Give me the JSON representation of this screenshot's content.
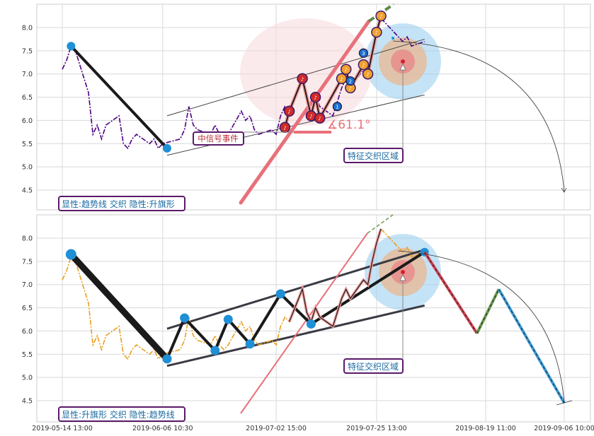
{
  "chart_data": [
    {
      "type": "line",
      "panel": "top",
      "ylim": [
        4.2,
        8.5
      ],
      "yticks": [
        4.5,
        5.0,
        5.5,
        6.0,
        6.5,
        7.0,
        7.5,
        8.0
      ],
      "grid": true,
      "box_label": "显性:趋势线 交织 隐性:升旗形",
      "colors": {
        "price": "#4b0082",
        "trend": "#1a1a1a",
        "pivot": "#1f8fd6",
        "angle": "#e8707a",
        "forecast": "#5c8a4a"
      },
      "price_series": [
        [
          "2019-05-14",
          7.1
        ],
        [
          "2019-05-15",
          7.3
        ],
        [
          "2019-05-16",
          7.6
        ],
        [
          "2019-05-17",
          7.5
        ],
        [
          "2019-05-20",
          6.6
        ],
        [
          "2019-05-21",
          5.7
        ],
        [
          "2019-05-22",
          5.9
        ],
        [
          "2019-05-23",
          5.6
        ],
        [
          "2019-05-24",
          5.9
        ],
        [
          "2019-05-27",
          6.1
        ],
        [
          "2019-05-28",
          5.5
        ],
        [
          "2019-05-29",
          5.4
        ],
        [
          "2019-05-30",
          5.6
        ],
        [
          "2019-05-31",
          5.7
        ],
        [
          "2019-06-03",
          5.5
        ],
        [
          "2019-06-04",
          5.6
        ],
        [
          "2019-06-05",
          5.4
        ],
        [
          "2019-06-06",
          5.5
        ],
        [
          "2019-06-10",
          5.6
        ],
        [
          "2019-06-11",
          5.8
        ],
        [
          "2019-06-12",
          6.3
        ],
        [
          "2019-06-13",
          5.9
        ],
        [
          "2019-06-14",
          5.8
        ],
        [
          "2019-06-17",
          5.7
        ],
        [
          "2019-06-18",
          5.9
        ],
        [
          "2019-06-19",
          5.7
        ],
        [
          "2019-06-20",
          5.6
        ],
        [
          "2019-06-21",
          5.7
        ],
        [
          "2019-06-24",
          6.2
        ],
        [
          "2019-06-25",
          6.0
        ],
        [
          "2019-06-26",
          6.1
        ],
        [
          "2019-06-27",
          5.8
        ],
        [
          "2019-06-28",
          5.7
        ],
        [
          "2019-07-01",
          5.8
        ],
        [
          "2019-07-02",
          5.7
        ],
        [
          "2019-07-03",
          6.1
        ],
        [
          "2019-07-04",
          6.3
        ],
        [
          "2019-07-05",
          6.2
        ],
        [
          "2019-07-08",
          6.9
        ],
        [
          "2019-07-09",
          6.4
        ],
        [
          "2019-07-10",
          6.2
        ],
        [
          "2019-07-11",
          6.5
        ],
        [
          "2019-07-12",
          6.3
        ],
        [
          "2019-07-15",
          6.1
        ],
        [
          "2019-07-16",
          6.4
        ],
        [
          "2019-07-17",
          6.7
        ],
        [
          "2019-07-18",
          6.9
        ],
        [
          "2019-07-19",
          6.7
        ],
        [
          "2019-07-22",
          7.1
        ],
        [
          "2019-07-23",
          7.0
        ],
        [
          "2019-07-24",
          7.5
        ],
        [
          "2019-07-25",
          7.9
        ],
        [
          "2019-07-26",
          8.2
        ],
        [
          "2019-07-29",
          7.9
        ],
        [
          "2019-07-30",
          7.8
        ],
        [
          "2019-07-31",
          7.7
        ],
        [
          "2019-08-01",
          7.8
        ],
        [
          "2019-08-02",
          7.6
        ],
        [
          "2019-08-05",
          7.7
        ]
      ],
      "trend_line": [
        [
          "2019-05-16",
          7.6
        ],
        [
          "2019-06-07",
          5.4
        ]
      ],
      "channel_upper": [
        [
          "2019-06-07",
          6.1
        ],
        [
          "2019-08-05",
          7.75
        ]
      ],
      "channel_lower": [
        [
          "2019-06-07",
          5.25
        ],
        [
          "2019-08-05",
          6.55
        ]
      ],
      "pivot_points": [
        [
          "2019-05-16",
          7.6
        ],
        [
          "2019-06-07",
          5.4
        ]
      ],
      "event_label": "中信号事件",
      "angle_label": "∡61.1°",
      "zone_label": "特征交织区域",
      "signal_markers": [
        [
          "2019-07-04",
          5.85
        ],
        [
          "2019-07-05",
          6.2
        ],
        [
          "2019-07-08",
          6.9
        ],
        [
          "2019-07-10",
          6.1
        ],
        [
          "2019-07-11",
          6.5
        ],
        [
          "2019-07-12",
          6.05
        ],
        [
          "2019-07-17",
          6.9
        ],
        [
          "2019-07-18",
          7.1
        ],
        [
          "2019-07-19",
          6.7
        ],
        [
          "2019-07-22",
          7.2
        ],
        [
          "2019-07-23",
          7.0
        ],
        [
          "2019-07-25",
          7.9
        ],
        [
          "2019-07-26",
          8.25
        ]
      ],
      "blue_markers": [
        [
          "2019-07-16",
          6.3,
          "1"
        ],
        [
          "2019-07-19",
          6.85,
          "2"
        ],
        [
          "2019-07-22",
          7.45,
          "3"
        ]
      ]
    },
    {
      "type": "line",
      "panel": "bottom",
      "ylim": [
        4.2,
        8.5
      ],
      "yticks": [
        4.5,
        5.0,
        5.5,
        6.0,
        6.5,
        7.0,
        7.5,
        8.0
      ],
      "grid": true,
      "box_label": "显性:升旗形 交织 隐性:趋势线",
      "colors": {
        "price": "#e8a020",
        "trend": "#1a1a1a",
        "pivot": "#1f8fd6",
        "channel": "#3a3a44",
        "forecast_red": "#d04050",
        "forecast_green": "#6a9a50",
        "forecast_blue": "#3a9ad8"
      },
      "price_series": [
        [
          "2019-05-14",
          7.1
        ],
        [
          "2019-05-15",
          7.3
        ],
        [
          "2019-05-16",
          7.6
        ],
        [
          "2019-05-17",
          7.5
        ],
        [
          "2019-05-20",
          6.6
        ],
        [
          "2019-05-21",
          5.7
        ],
        [
          "2019-05-22",
          5.9
        ],
        [
          "2019-05-23",
          5.6
        ],
        [
          "2019-05-24",
          5.9
        ],
        [
          "2019-05-27",
          6.1
        ],
        [
          "2019-05-28",
          5.5
        ],
        [
          "2019-05-29",
          5.4
        ],
        [
          "2019-05-30",
          5.6
        ],
        [
          "2019-05-31",
          5.7
        ],
        [
          "2019-06-03",
          5.5
        ],
        [
          "2019-06-04",
          5.6
        ],
        [
          "2019-06-05",
          5.4
        ],
        [
          "2019-06-06",
          5.5
        ],
        [
          "2019-06-10",
          5.6
        ],
        [
          "2019-06-11",
          5.8
        ],
        [
          "2019-06-12",
          6.3
        ],
        [
          "2019-06-13",
          5.9
        ],
        [
          "2019-06-14",
          5.8
        ],
        [
          "2019-06-17",
          5.7
        ],
        [
          "2019-06-18",
          5.9
        ],
        [
          "2019-06-19",
          5.7
        ],
        [
          "2019-06-20",
          5.6
        ],
        [
          "2019-06-21",
          5.7
        ],
        [
          "2019-06-24",
          6.2
        ],
        [
          "2019-06-25",
          6.0
        ],
        [
          "2019-06-26",
          6.1
        ],
        [
          "2019-06-27",
          5.8
        ],
        [
          "2019-06-28",
          5.7
        ],
        [
          "2019-07-01",
          5.8
        ],
        [
          "2019-07-02",
          5.7
        ],
        [
          "2019-07-03",
          6.1
        ],
        [
          "2019-07-04",
          6.3
        ],
        [
          "2019-07-05",
          6.2
        ],
        [
          "2019-07-08",
          6.9
        ],
        [
          "2019-07-09",
          6.4
        ],
        [
          "2019-07-10",
          6.2
        ],
        [
          "2019-07-11",
          6.5
        ],
        [
          "2019-07-12",
          6.3
        ],
        [
          "2019-07-15",
          6.1
        ],
        [
          "2019-07-16",
          6.4
        ],
        [
          "2019-07-17",
          6.7
        ],
        [
          "2019-07-18",
          6.9
        ],
        [
          "2019-07-19",
          6.7
        ],
        [
          "2019-07-22",
          7.1
        ],
        [
          "2019-07-23",
          7.0
        ],
        [
          "2019-07-24",
          7.5
        ],
        [
          "2019-07-25",
          7.9
        ],
        [
          "2019-07-26",
          8.2
        ],
        [
          "2019-07-29",
          7.9
        ],
        [
          "2019-07-30",
          7.8
        ],
        [
          "2019-07-31",
          7.7
        ],
        [
          "2019-08-01",
          7.8
        ],
        [
          "2019-08-02",
          7.6
        ],
        [
          "2019-08-05",
          7.7
        ]
      ],
      "zigzag": [
        [
          "2019-05-16",
          7.65
        ],
        [
          "2019-06-07",
          5.4
        ],
        [
          "2019-06-11",
          6.28
        ],
        [
          "2019-06-18",
          5.58
        ],
        [
          "2019-06-21",
          6.25
        ],
        [
          "2019-06-26",
          5.72
        ],
        [
          "2019-07-03",
          6.8
        ],
        [
          "2019-07-10",
          6.15
        ],
        [
          "2019-08-05",
          7.7
        ]
      ],
      "channel_upper": [
        [
          "2019-06-07",
          6.05
        ],
        [
          "2019-08-05",
          7.75
        ]
      ],
      "channel_lower": [
        [
          "2019-06-07",
          5.25
        ],
        [
          "2019-08-05",
          6.55
        ]
      ],
      "forecast": [
        [
          "2019-08-05",
          7.7
        ],
        [
          "2019-08-17",
          5.95
        ],
        [
          "2019-08-22",
          6.9
        ],
        [
          "2019-09-06",
          4.45
        ]
      ],
      "zone_label": "特征交织区域"
    }
  ],
  "x_axis": {
    "start": "2019-05-14",
    "end": "2019-09-06",
    "ticks": [
      {
        "date": "2019-05-14",
        "label": "2019-05-14 13:00"
      },
      {
        "date": "2019-06-06",
        "label": "2019-06-06 10:30"
      },
      {
        "date": "2019-07-02",
        "label": "2019-07-02 15:00"
      },
      {
        "date": "2019-07-25",
        "label": "2019-07-25 13:00"
      },
      {
        "date": "2019-08-19",
        "label": "2019-08-19 11:00"
      },
      {
        "date": "2019-09-06",
        "label": "2019-09-06 10:00"
      }
    ]
  }
}
